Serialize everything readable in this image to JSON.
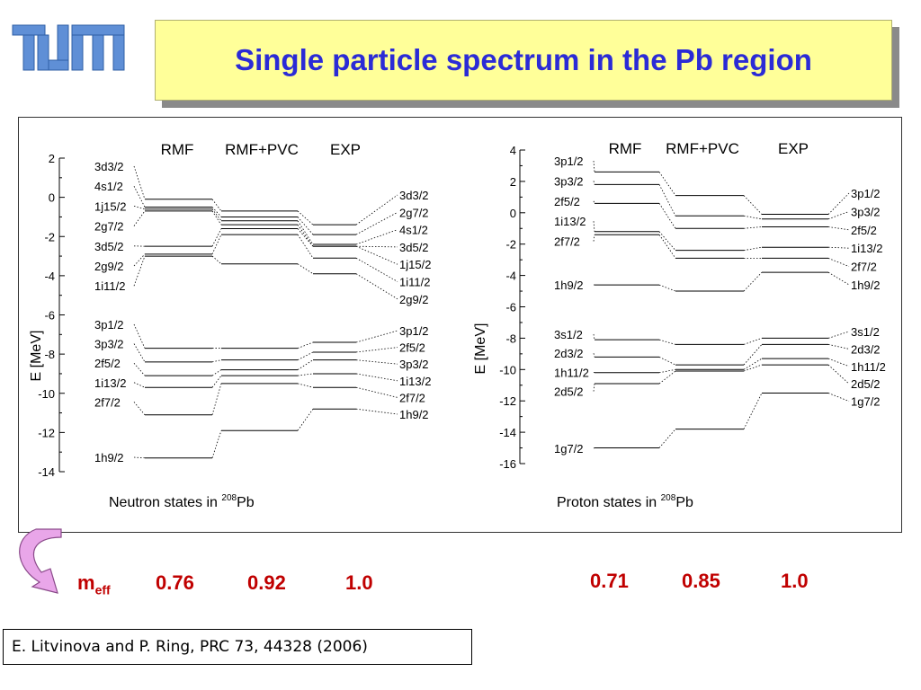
{
  "slide": {
    "title": "Single particle spectrum in the Pb region",
    "citation": "E. Litvinova and P. Ring, PRC 73, 44328 (2006)",
    "logo_text": "TUM",
    "meff_label": "m",
    "meff_sub": "eff",
    "meff_values": [
      "0.76",
      "0.92",
      "1.0",
      "0.71",
      "0.85",
      "1.0"
    ],
    "colors": {
      "title": "#2b2bd6",
      "title_bg": "#ffff99",
      "meff": "#c00000",
      "logo": "#5f8fd6",
      "arrow": "#e9a6e9"
    }
  },
  "chart_data": [
    {
      "type": "level-diagram",
      "title": "Neutron states in 208Pb",
      "title_main": "Neutron states in ",
      "title_sup": "208",
      "title_end": "Pb",
      "ylabel": "E [MeV]",
      "ylim": [
        -14,
        2
      ],
      "yticks": [
        "2",
        "0",
        "-2",
        "-4",
        "-6",
        "-8",
        "-10",
        "-12",
        "-14"
      ],
      "ytick_values": [
        2,
        0,
        -2,
        -4,
        -6,
        -8,
        -10,
        -12,
        -14
      ],
      "columns": [
        "RMF",
        "RMF+PVC",
        "EXP"
      ],
      "left_labels": [
        "3d3/2",
        "4s1/2",
        "1j15/2",
        "2g7/2",
        "3d5/2",
        "2g9/2",
        "1i11/2",
        "3p1/2",
        "3p3/2",
        "2f5/2",
        "1i13/2",
        "2f7/2",
        "1h9/2"
      ],
      "right_labels": [
        "3d3/2",
        "2g7/2",
        "4s1/2",
        "3d5/2",
        "1j15/2",
        "1i11/2",
        "2g9/2",
        "3p1/2",
        "2f5/2",
        "3p3/2",
        "1i13/2",
        "2f7/2",
        "1h9/2"
      ],
      "levels": {
        "RMF": [
          -0.1,
          -0.5,
          -0.6,
          -0.7,
          -2.5,
          -2.9,
          -3.0,
          -7.7,
          -8.4,
          -9.1,
          -9.7,
          -11.1,
          -13.3
        ],
        "RMF+PVC": [
          -0.7,
          -1.0,
          -1.2,
          -1.4,
          -1.6,
          -1.9,
          -3.4,
          -7.7,
          -8.3,
          -8.8,
          -9.1,
          -9.5,
          -11.9
        ],
        "EXP": [
          -1.4,
          -1.9,
          -2.4,
          -2.5,
          -2.5,
          -3.1,
          -3.9,
          -7.4,
          -7.9,
          -8.3,
          -9.0,
          -9.7,
          -10.8
        ]
      }
    },
    {
      "type": "level-diagram",
      "title": "Proton states in 208Pb",
      "title_main": "Proton states in ",
      "title_sup": "208",
      "title_end": "Pb",
      "ylabel": "E [MeV]",
      "ylim": [
        -16,
        4
      ],
      "yticks": [
        "4",
        "2",
        "0",
        "-2",
        "-4",
        "-6",
        "-8",
        "-10",
        "-12",
        "-14",
        "-16"
      ],
      "ytick_values": [
        4,
        2,
        0,
        -2,
        -4,
        -6,
        -8,
        -10,
        -12,
        -14,
        -16
      ],
      "columns": [
        "RMF",
        "RMF+PVC",
        "EXP"
      ],
      "left_labels": [
        "3p1/2",
        "3p3/2",
        "2f5/2",
        "1i13/2",
        "2f7/2",
        "1h9/2",
        "3s1/2",
        "2d3/2",
        "1h11/2",
        "2d5/2",
        "1g7/2"
      ],
      "right_labels": [
        "3p1/2",
        "3p3/2",
        "2f5/2",
        "1i13/2",
        "2f7/2",
        "1h9/2",
        "3s1/2",
        "2d3/2",
        "1h11/2",
        "2d5/2",
        "1g7/2"
      ],
      "levels": {
        "RMF": [
          2.6,
          1.8,
          0.6,
          -1.2,
          -1.4,
          -4.6,
          -8.1,
          -9.2,
          -10.2,
          -10.9,
          -15.0
        ],
        "RMF+PVC": [
          1.1,
          -0.2,
          -1.0,
          -2.4,
          -2.9,
          -5.0,
          -8.4,
          -9.7,
          -10.0,
          -10.1,
          -13.8
        ],
        "EXP": [
          -0.1,
          -0.4,
          -0.9,
          -2.2,
          -2.9,
          -3.8,
          -8.0,
          -8.4,
          -9.3,
          -9.7,
          -11.5
        ]
      }
    }
  ]
}
